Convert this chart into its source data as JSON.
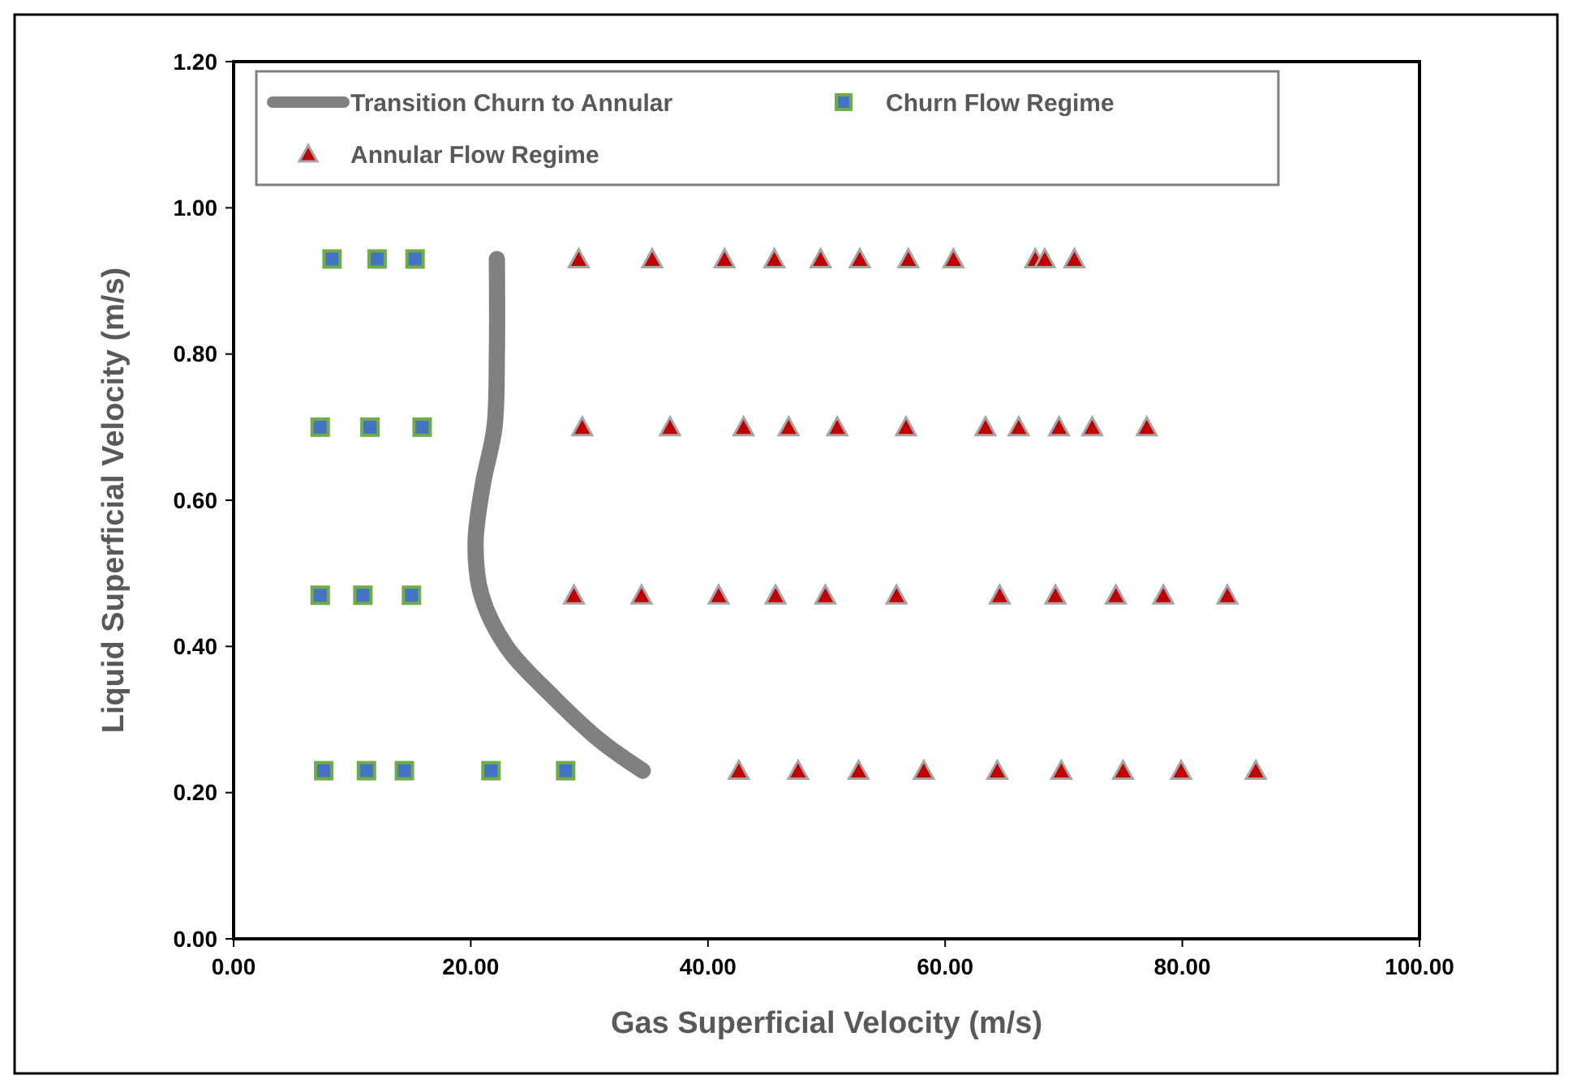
{
  "chart_data": {
    "type": "scatter",
    "xlabel": "Gas Superficial Velocity (m/s)",
    "ylabel": "Liquid Superficial Velocity (m/s)",
    "xlim": [
      0,
      100
    ],
    "xticks": [
      {
        "value": 0,
        "label": "0.00"
      },
      {
        "value": 20,
        "label": "20.00"
      },
      {
        "value": 40,
        "label": "40.00"
      },
      {
        "value": 60,
        "label": "60.00"
      },
      {
        "value": 80,
        "label": "80.00"
      },
      {
        "value": 100,
        "label": "100.00"
      }
    ],
    "ylim": [
      0,
      1.2
    ],
    "yticks": [
      {
        "value": 0,
        "label": "0.00"
      },
      {
        "value": 0.2,
        "label": "0.20"
      },
      {
        "value": 0.4,
        "label": "0.40"
      },
      {
        "value": 0.6,
        "label": "0.60"
      },
      {
        "value": 0.8,
        "label": "0.80"
      },
      {
        "value": 1,
        "label": "1.00"
      },
      {
        "value": 1.2,
        "label": "1.20"
      }
    ],
    "grid": false,
    "legend": "top",
    "series": [
      {
        "name": "Transition Churn to Annular",
        "type": "line",
        "color": "#808080",
        "marker": "none",
        "line_style": "solid",
        "x": [
          22.2,
          22.2,
          22.0,
          21.0,
          20.4,
          20.9,
          23.0,
          27.0,
          31.0,
          34.5
        ],
        "values": [
          0.93,
          0.8,
          0.7,
          0.62,
          0.54,
          0.47,
          0.4,
          0.33,
          0.27,
          0.23
        ]
      },
      {
        "name": "Churn Flow Regime",
        "type": "scatter",
        "color": "#4472c4",
        "marker": "square",
        "x": [
          8.3,
          12.1,
          15.3,
          7.3,
          11.5,
          15.9,
          7.3,
          10.9,
          15.0,
          7.6,
          11.2,
          14.4,
          21.7,
          28.0
        ],
        "values": [
          0.93,
          0.93,
          0.93,
          0.7,
          0.7,
          0.7,
          0.47,
          0.47,
          0.47,
          0.23,
          0.23,
          0.23,
          0.23,
          0.23
        ]
      },
      {
        "name": "Annular Flow Regime",
        "type": "scatter",
        "color": "#c00000",
        "marker": "triangle",
        "x": [
          29.1,
          35.3,
          41.4,
          45.6,
          49.5,
          52.8,
          56.9,
          60.7,
          67.6,
          68.4,
          70.9,
          29.4,
          36.8,
          43.0,
          46.8,
          50.9,
          56.7,
          63.4,
          66.2,
          69.6,
          72.4,
          77.0,
          28.7,
          34.4,
          40.9,
          45.7,
          49.9,
          55.9,
          64.6,
          69.3,
          74.4,
          78.4,
          83.8,
          42.6,
          47.6,
          52.7,
          58.2,
          64.4,
          69.8,
          75.0,
          79.9,
          86.2
        ],
        "values": [
          0.93,
          0.93,
          0.93,
          0.93,
          0.93,
          0.93,
          0.93,
          0.93,
          0.93,
          0.93,
          0.93,
          0.7,
          0.7,
          0.7,
          0.7,
          0.7,
          0.7,
          0.7,
          0.7,
          0.7,
          0.7,
          0.7,
          0.47,
          0.47,
          0.47,
          0.47,
          0.47,
          0.47,
          0.47,
          0.47,
          0.47,
          0.47,
          0.47,
          0.23,
          0.23,
          0.23,
          0.23,
          0.23,
          0.23,
          0.23,
          0.23,
          0.23
        ]
      }
    ]
  }
}
